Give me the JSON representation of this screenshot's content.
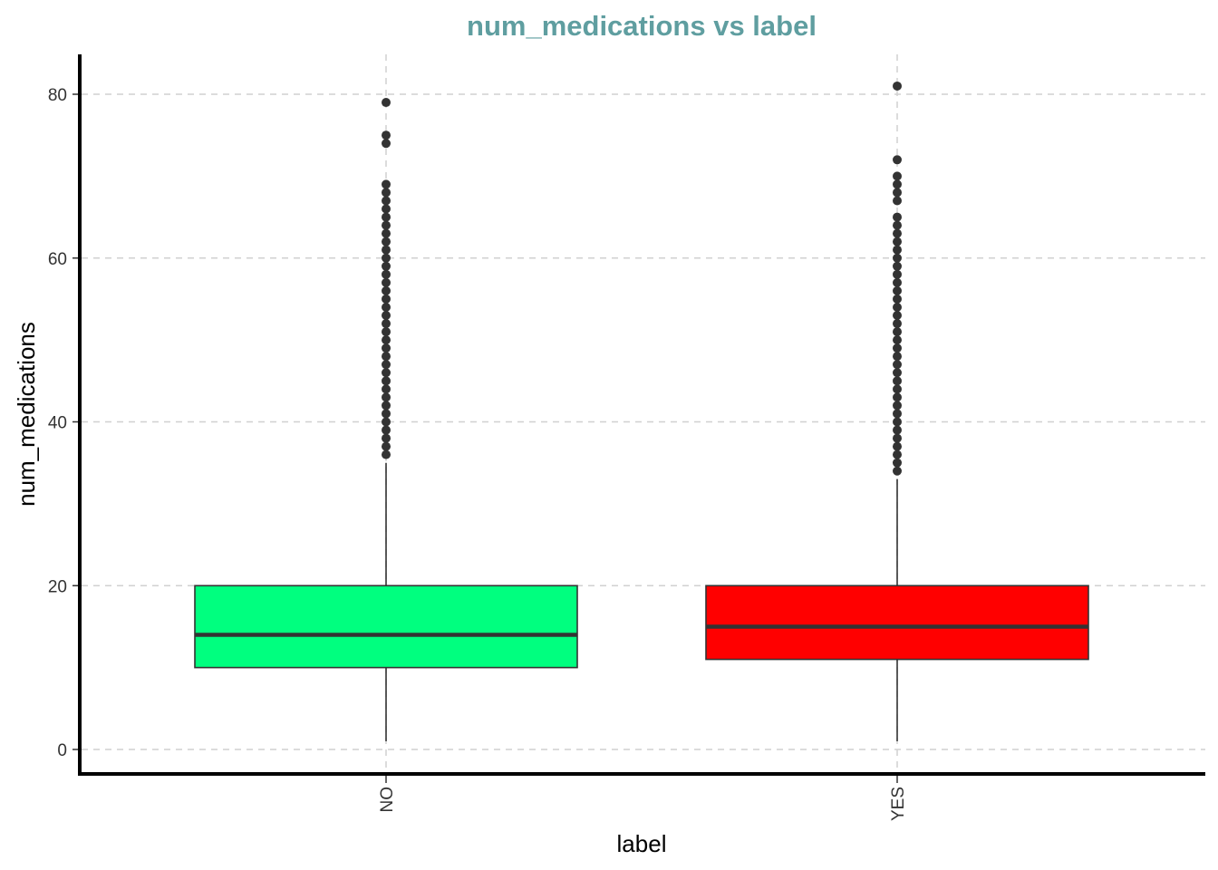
{
  "chart_data": {
    "type": "boxplot",
    "title": "num_medications vs label",
    "xlabel": "label",
    "ylabel": "num_medications",
    "categories": [
      "NO",
      "YES"
    ],
    "ylim": [
      -3,
      85
    ],
    "yticks": [
      0,
      20,
      40,
      60,
      80
    ],
    "grid": true,
    "legend": "none",
    "boxes": [
      {
        "category": "NO",
        "min": 1,
        "q1": 10,
        "median": 14,
        "q3": 20,
        "max": 35,
        "fill": "#00ff7f",
        "outliers": [
          36,
          37,
          38,
          39,
          40,
          41,
          42,
          43,
          44,
          45,
          46,
          47,
          48,
          49,
          50,
          51,
          52,
          53,
          54,
          55,
          56,
          57,
          58,
          59,
          60,
          61,
          62,
          63,
          64,
          65,
          66,
          67,
          68,
          69,
          74,
          75,
          79
        ]
      },
      {
        "category": "YES",
        "min": 1,
        "q1": 11,
        "median": 15,
        "q3": 20,
        "max": 33,
        "fill": "#ff0000",
        "outliers": [
          34,
          35,
          36,
          37,
          38,
          39,
          40,
          41,
          42,
          43,
          44,
          45,
          46,
          47,
          48,
          49,
          50,
          51,
          52,
          53,
          54,
          55,
          56,
          57,
          58,
          59,
          60,
          61,
          62,
          63,
          64,
          65,
          67,
          68,
          69,
          70,
          72,
          81
        ]
      }
    ],
    "colors": {
      "title": "#5f9ea0",
      "outline": "#333333",
      "axis": "#000000"
    }
  }
}
